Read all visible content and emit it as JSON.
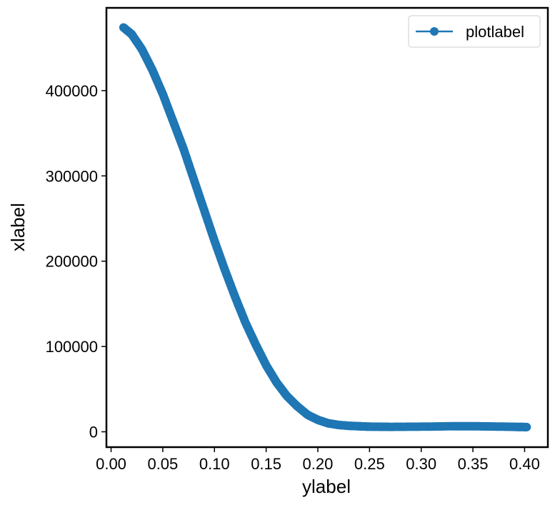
{
  "chart_data": {
    "type": "scatter",
    "title": "",
    "xlabel": "ylabel",
    "ylabel": "xlabel",
    "xlim": [
      -0.0045,
      0.4225
    ],
    "ylim": [
      -18000,
      497000
    ],
    "xticks": [
      0.0,
      0.05,
      0.1,
      0.15,
      0.2,
      0.25,
      0.3,
      0.35,
      0.4
    ],
    "xtick_labels": [
      "0.00",
      "0.05",
      "0.10",
      "0.15",
      "0.20",
      "0.25",
      "0.30",
      "0.35",
      "0.40"
    ],
    "yticks": [
      0,
      100000,
      200000,
      300000,
      400000
    ],
    "ytick_labels": [
      "0",
      "100000",
      "200000",
      "300000",
      "400000"
    ],
    "legend": {
      "position": "top-right",
      "entries": [
        "plotlabel"
      ]
    },
    "series": [
      {
        "name": "plotlabel",
        "color": "#1f77b4",
        "marker": "circle",
        "line": true,
        "points": [
          [
            0.012,
            474000
          ],
          [
            0.02,
            466000
          ],
          [
            0.03,
            448000
          ],
          [
            0.04,
            424000
          ],
          [
            0.05,
            396000
          ],
          [
            0.06,
            364000
          ],
          [
            0.07,
            332000
          ],
          [
            0.08,
            296000
          ],
          [
            0.09,
            260000
          ],
          [
            0.1,
            224000
          ],
          [
            0.11,
            190000
          ],
          [
            0.12,
            158000
          ],
          [
            0.13,
            128000
          ],
          [
            0.14,
            102000
          ],
          [
            0.15,
            78000
          ],
          [
            0.16,
            58000
          ],
          [
            0.17,
            42000
          ],
          [
            0.18,
            30000
          ],
          [
            0.19,
            20000
          ],
          [
            0.2,
            14000
          ],
          [
            0.21,
            10000
          ],
          [
            0.22,
            8000
          ],
          [
            0.23,
            7000
          ],
          [
            0.24,
            6500
          ],
          [
            0.25,
            6000
          ],
          [
            0.27,
            5800
          ],
          [
            0.3,
            6000
          ],
          [
            0.33,
            6500
          ],
          [
            0.35,
            6500
          ],
          [
            0.37,
            6200
          ],
          [
            0.39,
            5800
          ],
          [
            0.402,
            5500
          ]
        ]
      }
    ]
  }
}
